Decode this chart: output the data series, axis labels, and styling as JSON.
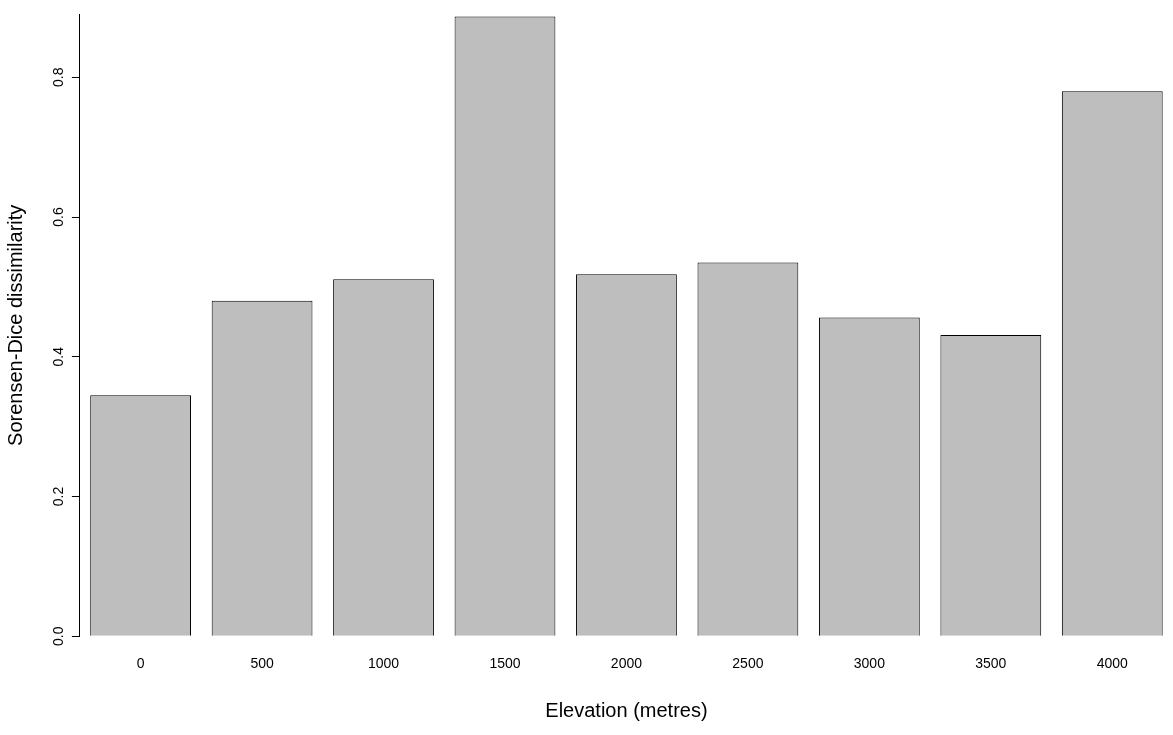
{
  "chart_data": {
    "type": "bar",
    "xlabel": "Elevation (metres)",
    "ylabel": "Sorensen-Dice dissimilarity",
    "categories": [
      "0",
      "500",
      "1000",
      "1500",
      "2000",
      "2500",
      "3000",
      "3500",
      "4000"
    ],
    "values": [
      0.345,
      0.48,
      0.511,
      0.887,
      0.518,
      0.535,
      0.456,
      0.431,
      0.78
    ],
    "color": "#bebebe",
    "ylim": [
      0,
      0.89
    ],
    "yticks": [
      {
        "value": 0,
        "label": "0.0"
      },
      {
        "value": 0.2,
        "label": "0.2"
      },
      {
        "value": 0.4,
        "label": "0.4"
      },
      {
        "value": 0.6,
        "label": "0.6"
      },
      {
        "value": 0.8,
        "label": "0.8"
      }
    ],
    "grid": false,
    "legend": false
  }
}
